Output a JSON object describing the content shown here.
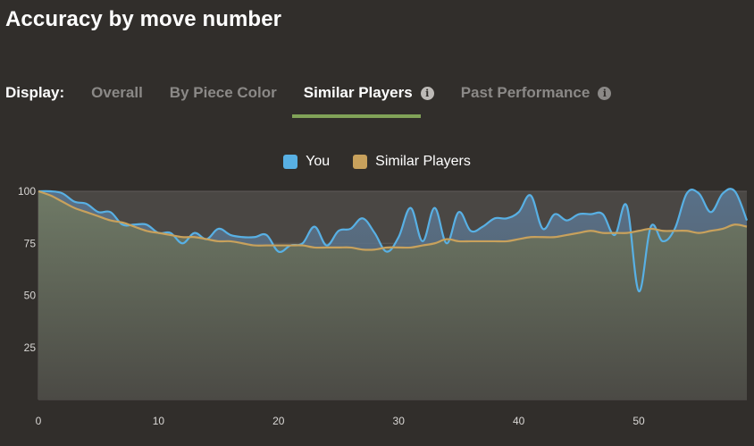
{
  "title": "Accuracy by move number",
  "display": {
    "label": "Display:",
    "tabs": [
      {
        "label": "Overall",
        "active": false,
        "info": false
      },
      {
        "label": "By Piece Color",
        "active": false,
        "info": false
      },
      {
        "label": "Similar Players",
        "active": true,
        "info": true
      },
      {
        "label": "Past Performance",
        "active": false,
        "info": true
      }
    ],
    "info_glyph": "i"
  },
  "colors": {
    "you": "#58b0e4",
    "similar": "#c8a15c",
    "accent": "#81a358"
  },
  "chart_data": {
    "type": "line",
    "title": "",
    "xlabel": "",
    "ylabel": "",
    "xlim": [
      0,
      59
    ],
    "ylim": [
      0,
      100
    ],
    "x_ticks": [
      0,
      10,
      20,
      30,
      40,
      50
    ],
    "y_ticks": [
      25,
      50,
      75,
      100
    ],
    "grid": true,
    "legend_position": "top-center",
    "series": [
      {
        "name": "You",
        "x": [
          0,
          1,
          2,
          3,
          4,
          5,
          6,
          7,
          8,
          9,
          10,
          11,
          12,
          13,
          14,
          15,
          16,
          17,
          18,
          19,
          20,
          21,
          22,
          23,
          24,
          25,
          26,
          27,
          28,
          29,
          30,
          31,
          32,
          33,
          34,
          35,
          36,
          37,
          38,
          39,
          40,
          41,
          42,
          43,
          44,
          45,
          46,
          47,
          48,
          49,
          50,
          51,
          52,
          53,
          54,
          55,
          56,
          57,
          58,
          59
        ],
        "values": [
          100,
          100,
          99,
          95,
          94,
          90,
          90,
          84,
          84,
          84,
          80,
          80,
          75,
          80,
          77,
          82,
          79,
          78,
          78,
          79,
          71,
          74,
          75,
          83,
          74,
          81,
          82,
          87,
          80,
          71,
          78,
          92,
          76,
          92,
          75,
          90,
          81,
          83,
          87,
          87,
          90,
          98,
          82,
          89,
          86,
          89,
          89,
          89,
          79,
          93,
          52,
          83,
          76,
          82,
          99,
          99,
          90,
          99,
          100,
          86
        ]
      },
      {
        "name": "Similar Players",
        "x": [
          0,
          1,
          2,
          3,
          4,
          5,
          6,
          7,
          8,
          9,
          10,
          11,
          12,
          13,
          14,
          15,
          16,
          17,
          18,
          19,
          20,
          21,
          22,
          23,
          24,
          25,
          26,
          27,
          28,
          29,
          30,
          31,
          32,
          33,
          34,
          35,
          36,
          37,
          38,
          39,
          40,
          41,
          42,
          43,
          44,
          45,
          46,
          47,
          48,
          49,
          50,
          51,
          52,
          53,
          54,
          55,
          56,
          57,
          58,
          59
        ],
        "values": [
          100,
          98,
          95,
          92,
          90,
          88,
          86,
          85,
          83,
          81,
          80,
          79,
          78,
          78,
          77,
          76,
          76,
          75,
          74,
          74,
          74,
          74,
          74,
          73,
          73,
          73,
          73,
          72,
          72,
          73,
          73,
          73,
          74,
          75,
          77,
          76,
          76,
          76,
          76,
          76,
          77,
          78,
          78,
          78,
          79,
          80,
          81,
          80,
          80,
          80,
          81,
          82,
          81,
          81,
          81,
          80,
          81,
          82,
          84,
          83
        ]
      }
    ]
  }
}
